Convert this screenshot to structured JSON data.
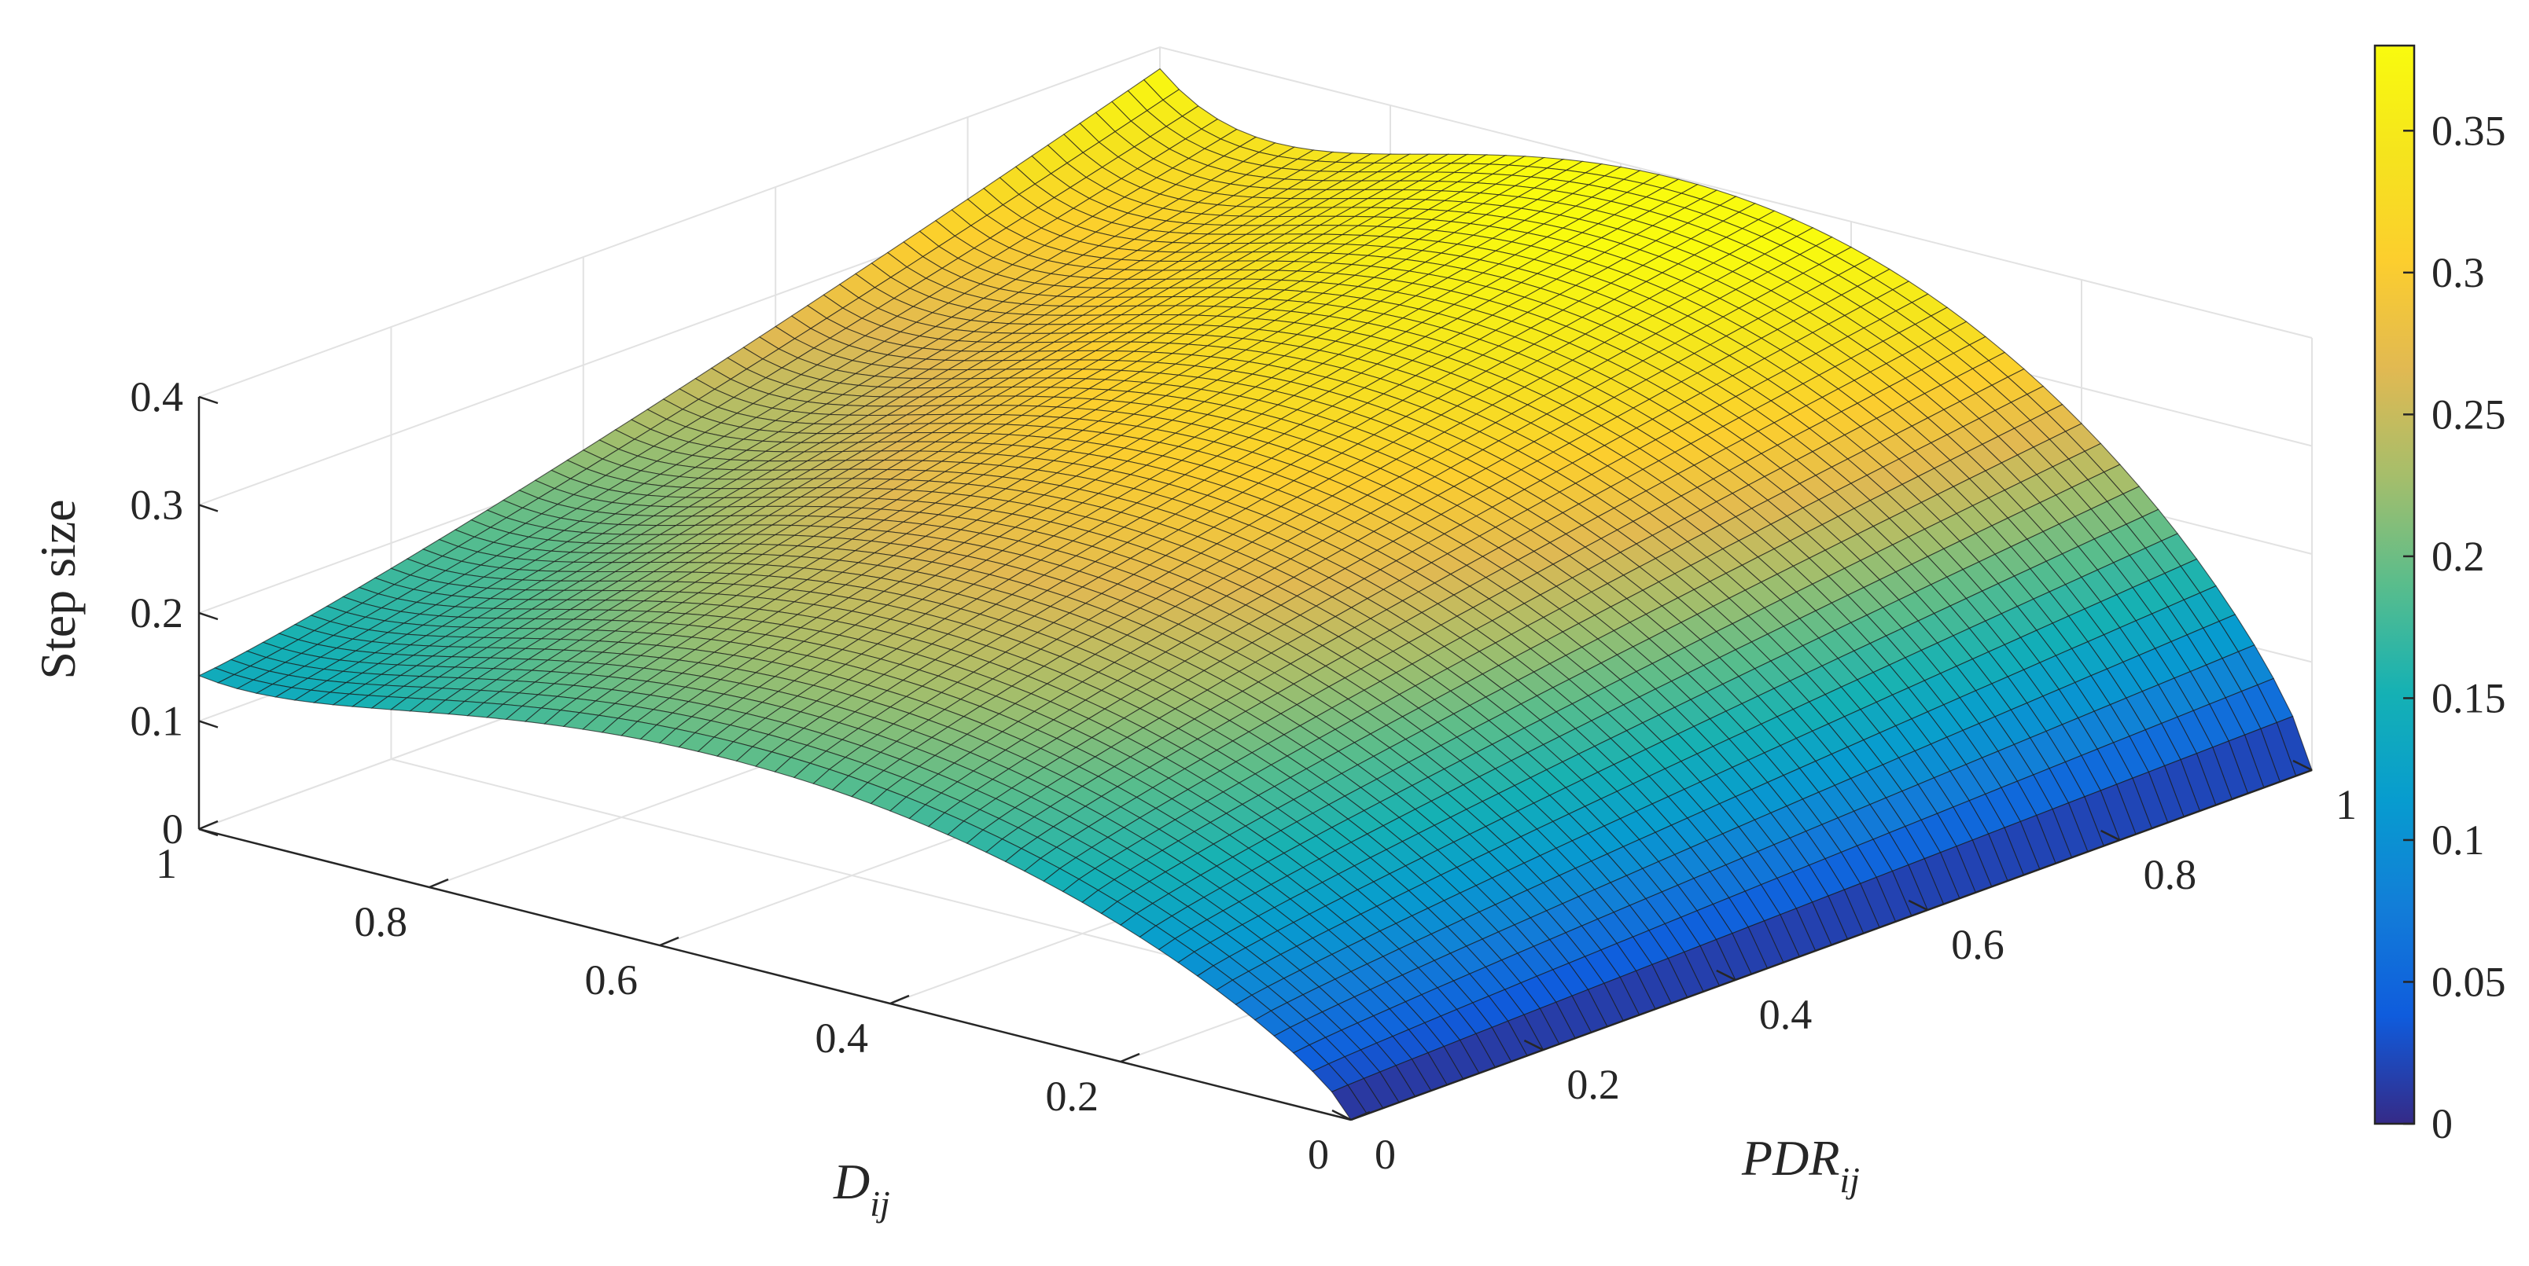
{
  "chart_data": {
    "type": "surface",
    "x_axis": {
      "label": "D",
      "label_subscript": "ij",
      "range": [
        0,
        1
      ],
      "ticks": [
        0,
        0.2,
        0.4,
        0.6,
        0.8,
        1
      ],
      "tick_labels": [
        "0",
        "0.2",
        "0.4",
        "0.6",
        "0.8",
        "1"
      ]
    },
    "y_axis": {
      "label": "PDR",
      "label_subscript": "ij",
      "range": [
        0,
        1
      ],
      "ticks": [
        0,
        0.2,
        0.4,
        0.6,
        0.8,
        1
      ],
      "tick_labels": [
        "0",
        "0.2",
        "0.4",
        "0.6",
        "0.8",
        "1"
      ]
    },
    "z_axis": {
      "label": "Step size",
      "range": [
        0,
        0.4
      ],
      "ticks": [
        0,
        0.1,
        0.2,
        0.3,
        0.4
      ],
      "tick_labels": [
        "0",
        "0.1",
        "0.2",
        "0.3",
        "0.4"
      ]
    },
    "colorbar": {
      "range": [
        0,
        0.38
      ],
      "ticks": [
        0,
        0.05,
        0.1,
        0.15,
        0.2,
        0.25,
        0.3,
        0.35
      ],
      "tick_labels": [
        "0",
        "0.05",
        "0.1",
        "0.15",
        "0.2",
        "0.25",
        "0.3",
        "0.35"
      ],
      "colormap": "parula"
    },
    "surface_samples": [
      {
        "D": 0,
        "PDR": 0,
        "z": 0.0
      },
      {
        "D": 1,
        "PDR": 0,
        "z": 0.142
      },
      {
        "D": 0,
        "PDR": 1,
        "z": 0.0
      },
      {
        "D": 1,
        "PDR": 1,
        "z": 0.38
      },
      {
        "D": 0.5,
        "PDR": 0.5,
        "z": 0.26
      }
    ],
    "grid": true
  },
  "colors": {
    "axis": "#262626",
    "grid": "#e2e2e2",
    "mesh": "#1a1a1a"
  }
}
